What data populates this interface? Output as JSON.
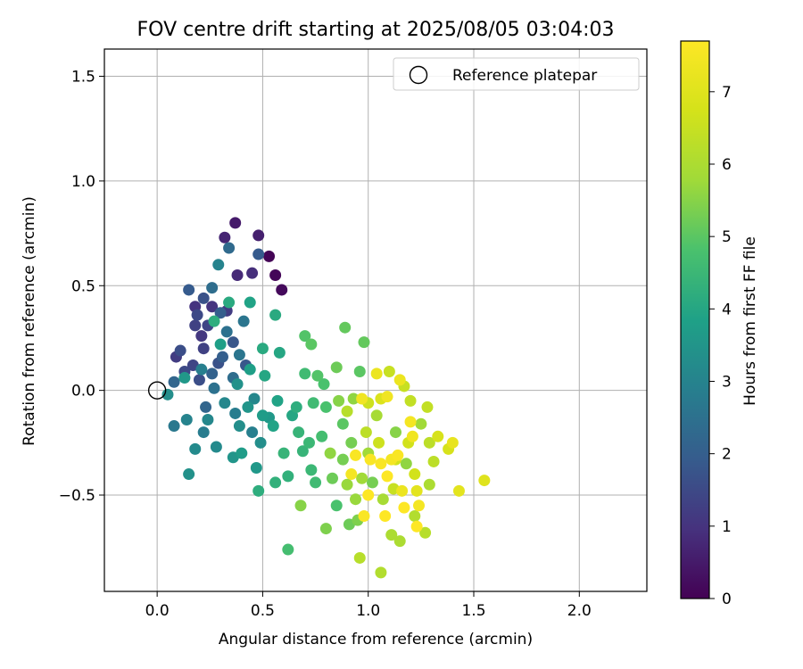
{
  "chart_data": {
    "type": "scatter",
    "title": "FOV centre drift starting at 2025/08/05 03:04:03",
    "xlabel": "Angular distance from reference (arcmin)",
    "ylabel": "Rotation from reference (arcmin)",
    "xlim": [
      -0.25,
      2.32
    ],
    "ylim": [
      -0.96,
      1.63
    ],
    "xticks": [
      0.0,
      0.5,
      1.0,
      1.5,
      2.0
    ],
    "xtick_labels": [
      "0.0",
      "0.5",
      "1.0",
      "1.5",
      "2.0"
    ],
    "yticks": [
      -0.5,
      0.0,
      0.5,
      1.0,
      1.5
    ],
    "ytick_labels": [
      "−0.5",
      "0.0",
      "0.5",
      "1.0",
      "1.5"
    ],
    "grid": true,
    "legend": {
      "placement": "top-right",
      "entries": [
        "Reference platepar"
      ]
    },
    "reference_point": {
      "x": 0.0,
      "y": 0.0
    },
    "colorbar": {
      "label": "Hours from first FF file",
      "colormap": "viridis",
      "range": [
        0,
        7.7
      ],
      "ticks": [
        0,
        1,
        2,
        3,
        4,
        5,
        6,
        7
      ],
      "tick_labels": [
        "0",
        "1",
        "2",
        "3",
        "4",
        "5",
        "6",
        "7"
      ]
    },
    "points": [
      {
        "x": 0.53,
        "y": 0.64,
        "c": 0.05
      },
      {
        "x": 0.56,
        "y": 0.55,
        "c": 0.1
      },
      {
        "x": 0.59,
        "y": 0.48,
        "c": 0.15
      },
      {
        "x": 0.37,
        "y": 0.8,
        "c": 0.5
      },
      {
        "x": 0.48,
        "y": 0.74,
        "c": 0.6
      },
      {
        "x": 0.32,
        "y": 0.73,
        "c": 0.7
      },
      {
        "x": 0.38,
        "y": 0.55,
        "c": 0.8
      },
      {
        "x": 0.45,
        "y": 0.56,
        "c": 0.9
      },
      {
        "x": 0.26,
        "y": 0.4,
        "c": 1.0
      },
      {
        "x": 0.18,
        "y": 0.4,
        "c": 1.0
      },
      {
        "x": 0.21,
        "y": 0.26,
        "c": 1.1
      },
      {
        "x": 0.33,
        "y": 0.38,
        "c": 1.2
      },
      {
        "x": 0.09,
        "y": 0.16,
        "c": 1.2
      },
      {
        "x": 0.22,
        "y": 0.2,
        "c": 1.3
      },
      {
        "x": 0.17,
        "y": 0.12,
        "c": 1.4
      },
      {
        "x": 0.24,
        "y": 0.31,
        "c": 1.4
      },
      {
        "x": 0.19,
        "y": 0.36,
        "c": 1.5
      },
      {
        "x": 0.13,
        "y": 0.09,
        "c": 1.5
      },
      {
        "x": 0.2,
        "y": 0.05,
        "c": 1.6
      },
      {
        "x": 0.29,
        "y": 0.13,
        "c": 1.7
      },
      {
        "x": 0.36,
        "y": 0.23,
        "c": 1.8
      },
      {
        "x": 0.42,
        "y": 0.12,
        "c": 1.8
      },
      {
        "x": 0.15,
        "y": 0.48,
        "c": 1.9
      },
      {
        "x": 0.48,
        "y": 0.65,
        "c": 1.9
      },
      {
        "x": 0.31,
        "y": 0.16,
        "c": 2.0
      },
      {
        "x": 0.26,
        "y": 0.08,
        "c": 2.1
      },
      {
        "x": 0.23,
        "y": -0.08,
        "c": 2.2
      },
      {
        "x": 0.08,
        "y": 0.04,
        "c": 2.2
      },
      {
        "x": 0.34,
        "y": 0.68,
        "c": 2.3
      },
      {
        "x": 0.36,
        "y": 0.06,
        "c": 2.4
      },
      {
        "x": 0.27,
        "y": 0.01,
        "c": 2.5
      },
      {
        "x": 0.33,
        "y": 0.28,
        "c": 2.5
      },
      {
        "x": 0.39,
        "y": 0.17,
        "c": 2.6
      },
      {
        "x": 0.08,
        "y": -0.17,
        "c": 2.7
      },
      {
        "x": 0.22,
        "y": -0.2,
        "c": 2.8
      },
      {
        "x": 0.37,
        "y": -0.11,
        "c": 2.8
      },
      {
        "x": 0.45,
        "y": -0.2,
        "c": 2.9
      },
      {
        "x": 0.14,
        "y": -0.14,
        "c": 3.0
      },
      {
        "x": 0.29,
        "y": 0.6,
        "c": 3.0
      },
      {
        "x": 0.46,
        "y": -0.04,
        "c": 3.1
      },
      {
        "x": 0.32,
        "y": -0.06,
        "c": 3.1
      },
      {
        "x": 0.18,
        "y": -0.28,
        "c": 3.2
      },
      {
        "x": 0.28,
        "y": -0.27,
        "c": 3.2
      },
      {
        "x": 0.39,
        "y": -0.17,
        "c": 3.3
      },
      {
        "x": 0.49,
        "y": -0.25,
        "c": 3.3
      },
      {
        "x": 0.15,
        "y": -0.4,
        "c": 3.4
      },
      {
        "x": 0.36,
        "y": -0.32,
        "c": 3.5
      },
      {
        "x": 0.43,
        "y": -0.08,
        "c": 3.5
      },
      {
        "x": 0.53,
        "y": -0.13,
        "c": 3.6
      },
      {
        "x": 0.47,
        "y": -0.37,
        "c": 3.6
      },
      {
        "x": 0.4,
        "y": -0.3,
        "c": 3.7
      },
      {
        "x": 0.5,
        "y": -0.12,
        "c": 3.7
      },
      {
        "x": 0.44,
        "y": 0.1,
        "c": 3.8
      },
      {
        "x": 0.55,
        "y": -0.17,
        "c": 3.9
      },
      {
        "x": 0.57,
        "y": -0.05,
        "c": 3.9
      },
      {
        "x": 0.64,
        "y": -0.12,
        "c": 4.0
      },
      {
        "x": 0.58,
        "y": 0.18,
        "c": 4.0
      },
      {
        "x": 0.5,
        "y": 0.2,
        "c": 4.1
      },
      {
        "x": 0.56,
        "y": 0.36,
        "c": 4.1
      },
      {
        "x": 0.34,
        "y": 0.42,
        "c": 4.1
      },
      {
        "x": 0.27,
        "y": 0.33,
        "c": 4.2
      },
      {
        "x": 0.48,
        "y": -0.48,
        "c": 4.2
      },
      {
        "x": 0.56,
        "y": -0.44,
        "c": 4.3
      },
      {
        "x": 0.62,
        "y": -0.41,
        "c": 4.3
      },
      {
        "x": 0.6,
        "y": -0.3,
        "c": 4.4
      },
      {
        "x": 0.67,
        "y": -0.2,
        "c": 4.4
      },
      {
        "x": 0.72,
        "y": -0.25,
        "c": 4.5
      },
      {
        "x": 0.73,
        "y": -0.38,
        "c": 4.5
      },
      {
        "x": 0.7,
        "y": 0.08,
        "c": 4.6
      },
      {
        "x": 0.74,
        "y": -0.06,
        "c": 4.6
      },
      {
        "x": 0.78,
        "y": -0.22,
        "c": 4.7
      },
      {
        "x": 0.62,
        "y": -0.76,
        "c": 4.7
      },
      {
        "x": 0.8,
        "y": -0.08,
        "c": 4.8
      },
      {
        "x": 0.79,
        "y": 0.03,
        "c": 4.8
      },
      {
        "x": 0.76,
        "y": 0.07,
        "c": 4.9
      },
      {
        "x": 0.7,
        "y": 0.26,
        "c": 4.9
      },
      {
        "x": 0.73,
        "y": 0.22,
        "c": 5.0
      },
      {
        "x": 0.96,
        "y": 0.09,
        "c": 5.0
      },
      {
        "x": 0.89,
        "y": 0.3,
        "c": 5.1
      },
      {
        "x": 0.98,
        "y": 0.23,
        "c": 5.1
      },
      {
        "x": 0.85,
        "y": 0.11,
        "c": 5.2
      },
      {
        "x": 0.83,
        "y": -0.42,
        "c": 5.2
      },
      {
        "x": 0.88,
        "y": -0.33,
        "c": 5.3
      },
      {
        "x": 0.92,
        "y": -0.25,
        "c": 5.3
      },
      {
        "x": 0.8,
        "y": -0.66,
        "c": 5.4
      },
      {
        "x": 0.95,
        "y": -0.62,
        "c": 5.4
      },
      {
        "x": 0.68,
        "y": -0.55,
        "c": 5.5
      },
      {
        "x": 0.86,
        "y": -0.05,
        "c": 5.5
      },
      {
        "x": 0.93,
        "y": -0.04,
        "c": 5.6
      },
      {
        "x": 0.82,
        "y": -0.3,
        "c": 5.6
      },
      {
        "x": 0.9,
        "y": -0.45,
        "c": 5.7
      },
      {
        "x": 0.94,
        "y": -0.52,
        "c": 5.7
      },
      {
        "x": 0.97,
        "y": -0.42,
        "c": 5.8
      },
      {
        "x": 1.0,
        "y": -0.3,
        "c": 5.8
      },
      {
        "x": 1.04,
        "y": -0.12,
        "c": 5.9
      },
      {
        "x": 1.07,
        "y": -0.52,
        "c": 5.9
      },
      {
        "x": 1.11,
        "y": -0.69,
        "c": 6.0
      },
      {
        "x": 1.15,
        "y": -0.72,
        "c": 6.0
      },
      {
        "x": 1.22,
        "y": -0.6,
        "c": 6.1
      },
      {
        "x": 1.06,
        "y": -0.87,
        "c": 6.1
      },
      {
        "x": 0.96,
        "y": -0.8,
        "c": 6.2
      },
      {
        "x": 1.27,
        "y": -0.68,
        "c": 6.2
      },
      {
        "x": 1.29,
        "y": -0.25,
        "c": 6.3
      },
      {
        "x": 1.31,
        "y": -0.34,
        "c": 6.3
      },
      {
        "x": 1.28,
        "y": -0.08,
        "c": 6.4
      },
      {
        "x": 1.2,
        "y": -0.05,
        "c": 6.4
      },
      {
        "x": 1.1,
        "y": 0.09,
        "c": 6.5
      },
      {
        "x": 1.17,
        "y": 0.02,
        "c": 6.5
      },
      {
        "x": 1.0,
        "y": -0.06,
        "c": 6.6
      },
      {
        "x": 1.05,
        "y": -0.25,
        "c": 6.6
      },
      {
        "x": 1.13,
        "y": -0.33,
        "c": 6.7
      },
      {
        "x": 1.22,
        "y": -0.4,
        "c": 6.7
      },
      {
        "x": 1.33,
        "y": -0.22,
        "c": 6.8
      },
      {
        "x": 1.38,
        "y": -0.28,
        "c": 6.8
      },
      {
        "x": 1.55,
        "y": -0.43,
        "c": 7.0
      },
      {
        "x": 1.43,
        "y": -0.48,
        "c": 7.1
      },
      {
        "x": 1.4,
        "y": -0.25,
        "c": 7.2
      },
      {
        "x": 1.04,
        "y": 0.08,
        "c": 7.3
      },
      {
        "x": 1.15,
        "y": 0.05,
        "c": 7.3
      },
      {
        "x": 0.97,
        "y": -0.04,
        "c": 7.4
      },
      {
        "x": 1.09,
        "y": -0.03,
        "c": 7.4
      },
      {
        "x": 1.2,
        "y": -0.15,
        "c": 7.5
      },
      {
        "x": 1.24,
        "y": -0.55,
        "c": 7.5
      },
      {
        "x": 1.11,
        "y": -0.33,
        "c": 7.5
      },
      {
        "x": 1.06,
        "y": -0.35,
        "c": 7.6
      },
      {
        "x": 1.01,
        "y": -0.33,
        "c": 7.6
      },
      {
        "x": 1.14,
        "y": -0.31,
        "c": 7.6
      },
      {
        "x": 0.98,
        "y": -0.6,
        "c": 7.6
      },
      {
        "x": 1.08,
        "y": -0.6,
        "c": 7.7
      },
      {
        "x": 1.17,
        "y": -0.56,
        "c": 7.7
      },
      {
        "x": 1.23,
        "y": -0.65,
        "c": 7.7
      },
      {
        "x": 1.0,
        "y": -0.5,
        "c": 7.7
      },
      {
        "x": 0.18,
        "y": 0.31,
        "c": 1.3
      },
      {
        "x": 0.11,
        "y": 0.19,
        "c": 1.6
      },
      {
        "x": 0.22,
        "y": 0.44,
        "c": 1.7
      },
      {
        "x": 0.3,
        "y": 0.37,
        "c": 2.0
      },
      {
        "x": 0.26,
        "y": 0.49,
        "c": 2.4
      },
      {
        "x": 0.41,
        "y": 0.33,
        "c": 2.6
      },
      {
        "x": 0.21,
        "y": 0.1,
        "c": 2.9
      },
      {
        "x": 0.05,
        "y": -0.02,
        "c": 3.3
      },
      {
        "x": 0.13,
        "y": 0.06,
        "c": 3.6
      },
      {
        "x": 0.3,
        "y": 0.22,
        "c": 3.8
      },
      {
        "x": 0.38,
        "y": 0.03,
        "c": 3.4
      },
      {
        "x": 0.24,
        "y": -0.14,
        "c": 3.1
      },
      {
        "x": 0.44,
        "y": 0.42,
        "c": 3.9
      },
      {
        "x": 0.51,
        "y": 0.07,
        "c": 4.0
      },
      {
        "x": 0.66,
        "y": -0.08,
        "c": 4.2
      },
      {
        "x": 0.69,
        "y": -0.29,
        "c": 4.4
      },
      {
        "x": 0.75,
        "y": -0.44,
        "c": 4.6
      },
      {
        "x": 0.85,
        "y": -0.55,
        "c": 4.8
      },
      {
        "x": 0.88,
        "y": -0.16,
        "c": 5.0
      },
      {
        "x": 0.91,
        "y": -0.64,
        "c": 5.2
      },
      {
        "x": 1.02,
        "y": -0.44,
        "c": 5.3
      },
      {
        "x": 1.13,
        "y": -0.2,
        "c": 5.5
      },
      {
        "x": 1.18,
        "y": -0.35,
        "c": 5.6
      },
      {
        "x": 1.25,
        "y": -0.16,
        "c": 5.8
      },
      {
        "x": 1.29,
        "y": -0.45,
        "c": 6.0
      },
      {
        "x": 0.9,
        "y": -0.1,
        "c": 6.2
      },
      {
        "x": 0.99,
        "y": -0.2,
        "c": 6.3
      },
      {
        "x": 1.12,
        "y": -0.47,
        "c": 6.5
      },
      {
        "x": 1.19,
        "y": -0.25,
        "c": 6.7
      },
      {
        "x": 1.06,
        "y": -0.04,
        "c": 6.9
      },
      {
        "x": 1.23,
        "y": -0.48,
        "c": 7.1
      },
      {
        "x": 1.16,
        "y": -0.48,
        "c": 7.3
      },
      {
        "x": 1.21,
        "y": -0.22,
        "c": 7.4
      },
      {
        "x": 0.92,
        "y": -0.4,
        "c": 7.5
      },
      {
        "x": 0.94,
        "y": -0.31,
        "c": 7.6
      },
      {
        "x": 1.09,
        "y": -0.41,
        "c": 7.7
      }
    ]
  }
}
